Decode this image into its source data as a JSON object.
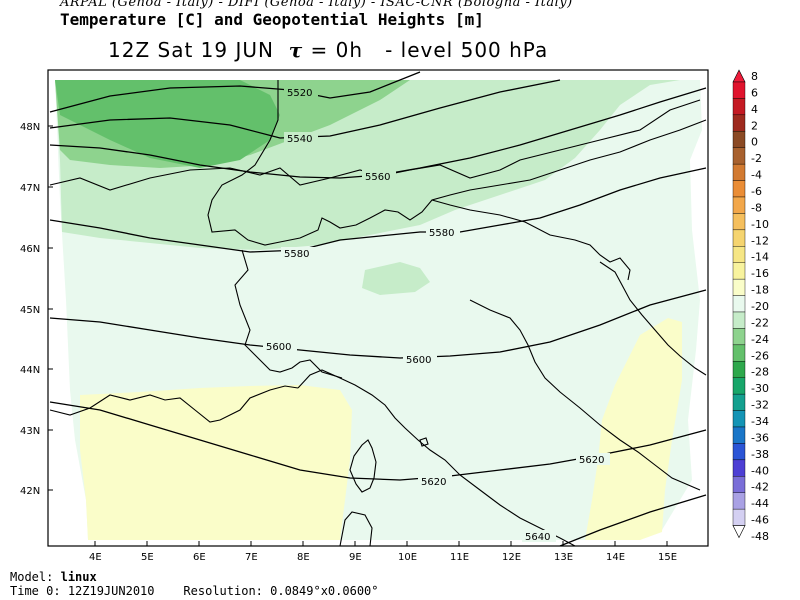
{
  "header": {
    "credits": "ARPAL (Genoa - Italy)  -  DIFI (Genoa - Italy)  -  ISAC-CNR (Bologna - Italy)",
    "title": "Temperature [C] and Geopotential Heights [m]",
    "time_prefix": "12Z Sat 19 JUN",
    "tau_symbol": "τ",
    "tau_value": "= 0h",
    "level": "-   level 500 hPa"
  },
  "map": {
    "lat_labels": [
      "48N",
      "47N",
      "46N",
      "45N",
      "44N",
      "43N",
      "42N"
    ],
    "lon_labels": [
      "4E",
      "5E",
      "6E",
      "7E",
      "8E",
      "9E",
      "10E",
      "11E",
      "12E",
      "13E",
      "14E",
      "15E"
    ],
    "contour_labels": [
      "5520",
      "5540",
      "5560",
      "5580",
      "5580",
      "5600",
      "5600",
      "5620",
      "5620",
      "5640"
    ],
    "fill_colors": {
      "green_dark": "#63c06b",
      "green_mid": "#8ed38e",
      "green_light": "#c6ecc9",
      "cyan_pale": "#e9f9ee",
      "yellow_pale": "#fafdc9"
    }
  },
  "colorbar": {
    "labels": [
      "8",
      "6",
      "4",
      "2",
      "0",
      "-2",
      "-4",
      "-6",
      "-8",
      "-10",
      "-12",
      "-14",
      "-16",
      "-18",
      "-20",
      "-22",
      "-24",
      "-26",
      "-28",
      "-30",
      "-32",
      "-34",
      "-36",
      "-38",
      "-40",
      "-42",
      "-44",
      "-46",
      "-48"
    ],
    "colors": [
      "#ee1c3a",
      "#e0132d",
      "#c41a23",
      "#9e2a1e",
      "#8b4a24",
      "#a8612e",
      "#d27a31",
      "#ea8d36",
      "#f2a74a",
      "#f5bf5d",
      "#f5d46f",
      "#f6e685",
      "#f8f39e",
      "#fafdc9",
      "#e9f9ee",
      "#c6ecc9",
      "#8ed38e",
      "#63c06b",
      "#2ea84c",
      "#18a66a",
      "#14a08f",
      "#1494b5",
      "#1a76c8",
      "#2b55d6",
      "#4d3fd4",
      "#7a6ed8",
      "#a9a1e4",
      "#d4d0f2",
      "#ffffff"
    ]
  },
  "footer": {
    "model_prefix": "Model:",
    "model_name": "linux",
    "time_prefix": "Time 0:",
    "time_value": "12Z19JUN2010",
    "resolution": "Resolution: 0.0849°x0.0600°"
  }
}
